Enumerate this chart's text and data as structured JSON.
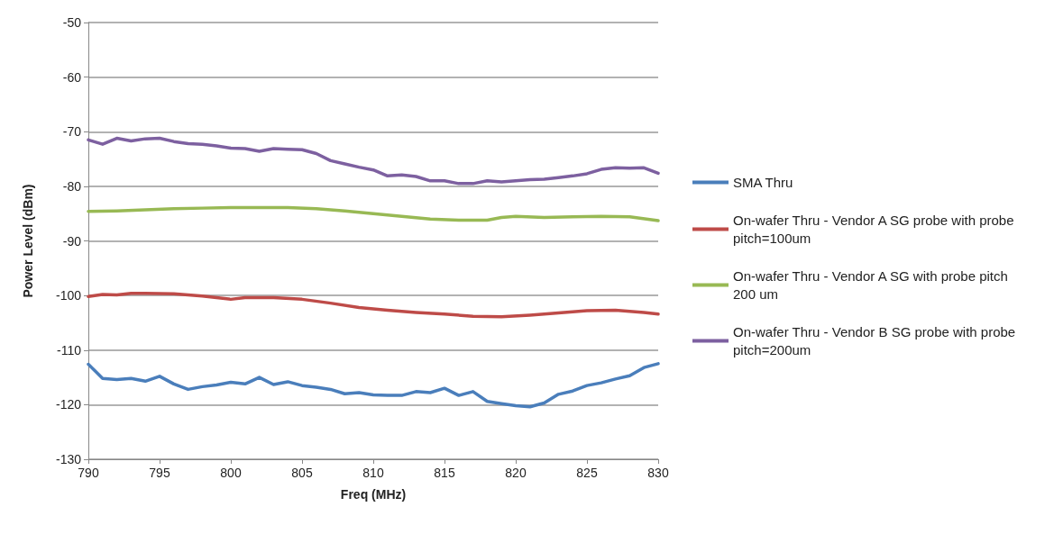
{
  "chart_data": {
    "type": "line",
    "xlabel": "Freq (MHz)",
    "ylabel": "Power Level (dBm)",
    "xlim": [
      790,
      830
    ],
    "xticks": [
      790,
      795,
      800,
      805,
      810,
      815,
      820,
      825,
      830
    ],
    "ylim": [
      -130,
      -50
    ],
    "yticks": [
      -130,
      -120,
      -110,
      -100,
      -90,
      -80,
      -70,
      -60,
      -50
    ],
    "grid": "y",
    "legend": "right",
    "marker": "none",
    "line_style": "solid",
    "series": [
      {
        "name": "SMA Thru",
        "color": "#4a7ebb",
        "x": [
          790,
          791,
          792,
          793,
          794,
          795,
          796,
          797,
          798,
          799,
          800,
          801,
          802,
          803,
          804,
          805,
          806,
          807,
          808,
          809,
          810,
          811,
          812,
          813,
          814,
          815,
          816,
          817,
          818,
          819,
          820,
          821,
          822,
          823,
          824,
          825,
          826,
          827,
          828,
          829,
          830
        ],
        "values": [
          -112.6,
          -115.2,
          -115.4,
          -115.2,
          -115.7,
          -114.8,
          -116.2,
          -117.2,
          -116.7,
          -116.4,
          -115.9,
          -116.2,
          -115,
          -116.3,
          -115.8,
          -116.5,
          -116.8,
          -117.2,
          -118,
          -117.8,
          -118.2,
          -118.3,
          -118.3,
          -117.6,
          -117.8,
          -117,
          -118.3,
          -117.6,
          -119.4,
          -119.8,
          -120.2,
          -120.4,
          -119.7,
          -118.1,
          -117.5,
          -116.5,
          -116,
          -115.3,
          -114.7,
          -113.2,
          -112.5
        ]
      },
      {
        "name": "On-wafer Thru - Vendor A SG probe with probe pitch=100um",
        "color": "#be4b48",
        "x": [
          790,
          791,
          792,
          793,
          794,
          796,
          798,
          800,
          801,
          803,
          805,
          807,
          809,
          811,
          813,
          815,
          817,
          819,
          821,
          823,
          825,
          827,
          829,
          830
        ],
        "values": [
          -100.2,
          -99.8,
          -99.9,
          -99.6,
          -99.6,
          -99.7,
          -100.1,
          -100.7,
          -100.4,
          -100.4,
          -100.7,
          -101.4,
          -102.2,
          -102.7,
          -103.1,
          -103.4,
          -103.8,
          -103.9,
          -103.6,
          -103.2,
          -102.8,
          -102.7,
          -103.1,
          -103.4
        ]
      },
      {
        "name": "On-wafer Thru - Vendor A SG with probe pitch 200 um",
        "color": "#98b954",
        "x": [
          790,
          792,
          794,
          796,
          798,
          800,
          802,
          804,
          806,
          808,
          810,
          812,
          814,
          816,
          818,
          819,
          820,
          822,
          824,
          826,
          828,
          830
        ],
        "values": [
          -84.6,
          -84.5,
          -84.3,
          -84.1,
          -84,
          -83.9,
          -83.9,
          -83.9,
          -84.1,
          -84.5,
          -85,
          -85.5,
          -86,
          -86.2,
          -86.2,
          -85.7,
          -85.5,
          -85.7,
          -85.6,
          -85.5,
          -85.6,
          -86.3
        ]
      },
      {
        "name": "On-wafer Thru - Vendor B SG probe with probe pitch=200um",
        "color": "#7d60a0",
        "x": [
          790,
          791,
          792,
          793,
          794,
          795,
          796,
          797,
          798,
          799,
          800,
          801,
          802,
          803,
          804,
          805,
          806,
          807,
          808,
          809,
          810,
          811,
          812,
          813,
          814,
          815,
          816,
          817,
          818,
          819,
          820,
          821,
          822,
          823,
          824,
          825,
          826,
          827,
          828,
          829,
          830
        ],
        "values": [
          -71.5,
          -72.3,
          -71.2,
          -71.7,
          -71.3,
          -71.2,
          -71.8,
          -72.2,
          -72.3,
          -72.6,
          -73,
          -73.1,
          -73.6,
          -73.1,
          -73.2,
          -73.3,
          -74,
          -75.3,
          -75.9,
          -76.5,
          -77,
          -78.1,
          -77.9,
          -78.2,
          -79,
          -79,
          -79.5,
          -79.5,
          -79,
          -79.2,
          -79,
          -78.8,
          -78.7,
          -78.4,
          -78.1,
          -77.7,
          -76.9,
          -76.6,
          -76.7,
          -76.6,
          -77.6
        ]
      }
    ]
  }
}
